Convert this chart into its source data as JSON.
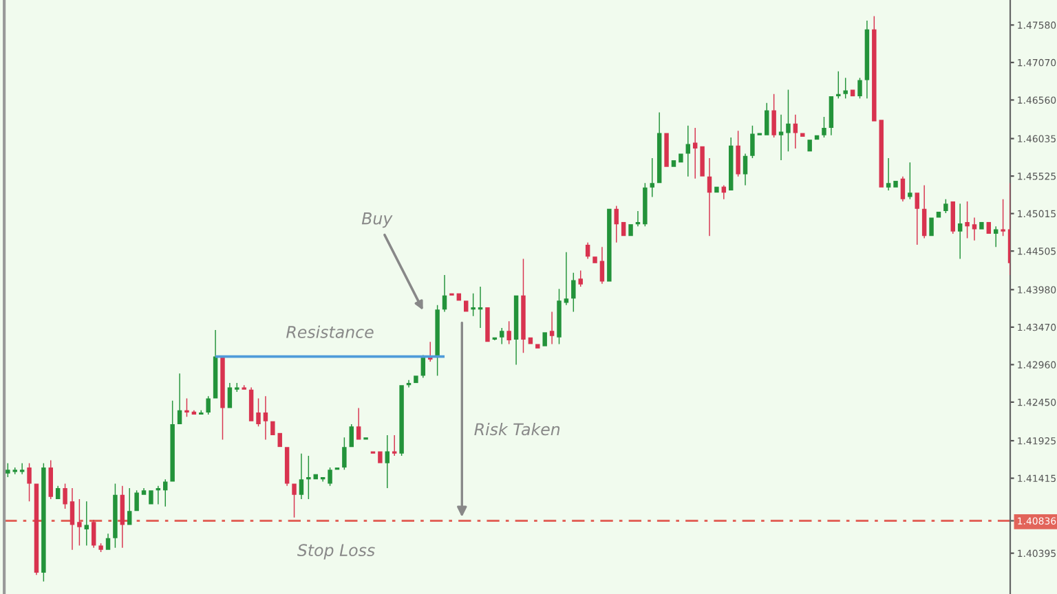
{
  "chart_data": {
    "type": "candlestick",
    "categories": [
      null,
      null,
      null,
      null,
      null,
      null,
      null,
      null,
      null,
      null,
      null,
      null,
      null,
      null,
      null,
      null,
      null,
      null,
      null,
      null,
      null,
      null,
      null,
      null,
      null,
      null,
      null,
      null,
      null,
      null,
      null,
      null,
      null,
      null,
      null,
      null,
      null,
      null,
      null,
      null,
      null,
      null,
      null,
      null,
      null,
      null,
      null,
      null,
      null,
      null,
      null,
      null,
      null,
      null,
      null,
      null,
      null,
      null,
      null,
      null,
      null,
      null,
      null,
      null,
      null,
      null,
      null,
      null,
      null,
      null,
      null,
      null,
      null,
      null,
      null,
      null,
      null,
      null,
      null,
      null,
      null,
      null,
      null,
      null,
      null,
      null,
      null,
      null,
      null,
      null,
      null,
      null,
      null,
      null,
      null,
      null,
      null,
      null,
      null,
      null,
      null,
      null,
      null,
      null,
      null,
      null,
      null,
      null,
      null,
      null,
      null,
      null,
      null,
      null,
      null,
      null,
      null,
      null,
      null,
      null,
      null,
      null,
      null,
      null,
      null,
      null,
      null,
      null,
      null,
      null,
      null,
      null,
      null,
      null,
      null,
      null,
      null,
      null,
      null,
      null,
      null
    ],
    "ylim": [
      1.3984,
      1.4792
    ],
    "yticks": [
      {
        "value": 1.4758,
        "label": "1.47580"
      },
      {
        "value": 1.4707,
        "label": "1.47070"
      },
      {
        "value": 1.4656,
        "label": "1.46560"
      },
      {
        "value": 1.46035,
        "label": "1.46035"
      },
      {
        "value": 1.45525,
        "label": "1.45525"
      },
      {
        "value": 1.45015,
        "label": "1.45015"
      },
      {
        "value": 1.44505,
        "label": "1.44505"
      },
      {
        "value": 1.4398,
        "label": "1.43980"
      },
      {
        "value": 1.4347,
        "label": "1.43470"
      },
      {
        "value": 1.4296,
        "label": "1.42960"
      },
      {
        "value": 1.4245,
        "label": "1.42450"
      },
      {
        "value": 1.41925,
        "label": "1.41925"
      },
      {
        "value": 1.41415,
        "label": "1.41415"
      },
      {
        "value": 1.40836,
        "label": "1.40836"
      },
      {
        "value": 1.40395,
        "label": "1.40395"
      }
    ],
    "tick_labels": "y",
    "colors": [
      "#23933a",
      "#23933a",
      "#23933a",
      "#d8334f",
      "#d8334f",
      "#23933a",
      "#d8334f",
      "#23933a",
      "#d8334f",
      "#d8334f",
      "#d8334f",
      "#23933a",
      "#d8334f",
      "#d8334f",
      "#23933a",
      "#23933a",
      "#d8334f",
      "#23933a",
      "#23933a",
      "#23933a",
      "#23933a",
      "#23933a",
      "#23933a",
      "#23933a",
      "#23933a",
      "#d8334f",
      "#d8334f",
      "#23933a",
      "#23933a",
      "#23933a",
      "#d8334f",
      "#23933a",
      "#23933a",
      "#d8334f",
      "#d8334f",
      "#d8334f",
      "#d8334f",
      "#d8334f",
      "#d8334f",
      "#d8334f",
      "#d8334f",
      "#23933a",
      "#23933a",
      "#23933a",
      "#23933a",
      "#23933a",
      "#23933a",
      "#23933a",
      "#23933a",
      "#d8334f",
      "#23933a",
      "#d8334f",
      "#d8334f",
      "#23933a",
      "#d8334f",
      "#23933a",
      "#23933a",
      "#23933a",
      "#23933a",
      "#d8334f",
      "#23933a",
      "#23933a",
      "#d8334f",
      "#d8334f",
      "#d8334f",
      "#23933a",
      "#23933a",
      "#d8334f",
      "#23933a",
      "#23933a",
      "#d8334f",
      "#23933a",
      "#d8334f",
      "#d8334f",
      "#d8334f",
      "#23933a",
      "#d8334f",
      "#23933a",
      "#23933a",
      "#23933a",
      "#d8334f",
      "#d8334f",
      "#d8334f",
      "#d8334f",
      "#23933a",
      "#d8334f",
      "#d8334f",
      "#23933a",
      "#23933a",
      "#23933a",
      "#23933a",
      "#23933a",
      "#d8334f",
      "#23933a",
      "#23933a",
      "#23933a",
      "#d8334f",
      "#d8334f",
      "#d8334f",
      "#23933a",
      "#d8334f",
      "#23933a",
      "#d8334f",
      "#23933a",
      "#23933a",
      "#23933a",
      "#23933a",
      "#d8334f",
      "#23933a",
      "#23933a",
      "#d8334f",
      "#d8334f",
      "#23933a",
      "#23933a",
      "#23933a",
      "#23933a",
      "#23933a",
      "#23933a",
      "#d8334f",
      "#23933a",
      "#23933a",
      "#d8334f",
      "#d8334f",
      "#23933a",
      "#23933a",
      "#d8334f",
      "#23933a",
      "#d8334f",
      "#d8334f",
      "#23933a",
      "#23933a",
      "#23933a",
      "#d8334f",
      "#23933a",
      "#d8334f",
      "#d8334f",
      "#23933a",
      "#d8334f",
      "#23933a",
      "#d8334f",
      "#d8334f"
    ],
    "ohlc": [
      [
        1.4148,
        1.4162,
        1.4143,
        1.4153
      ],
      [
        1.415,
        1.4156,
        1.4147,
        1.4153
      ],
      [
        1.415,
        1.4162,
        1.4147,
        1.4153
      ],
      [
        1.4156,
        1.4162,
        1.411,
        1.4134
      ],
      [
        1.4134,
        1.4134,
        1.401,
        1.4013
      ],
      [
        1.4013,
        1.4162,
        1.4001,
        1.4156
      ],
      [
        1.4156,
        1.4166,
        1.4113,
        1.4116
      ],
      [
        1.4113,
        1.4131,
        1.4113,
        1.4128
      ],
      [
        1.4128,
        1.4134,
        1.41,
        1.4106
      ],
      [
        1.411,
        1.4128,
        1.4044,
        1.4078
      ],
      [
        1.4082,
        1.4113,
        1.405,
        1.4075
      ],
      [
        1.4072,
        1.411,
        1.405,
        1.4078
      ],
      [
        1.4082,
        1.4085,
        1.4047,
        1.405
      ],
      [
        1.405,
        1.4053,
        1.4041,
        1.4044
      ],
      [
        1.4044,
        1.4066,
        1.4044,
        1.406
      ],
      [
        1.406,
        1.4134,
        1.4047,
        1.4119
      ],
      [
        1.4119,
        1.4131,
        1.4047,
        1.4078
      ],
      [
        1.4078,
        1.4128,
        1.4078,
        1.4097
      ],
      [
        1.4097,
        1.4125,
        1.4097,
        1.4122
      ],
      [
        1.4119,
        1.4128,
        1.4119,
        1.4125
      ],
      [
        1.4106,
        1.4125,
        1.4106,
        1.4125
      ],
      [
        1.4125,
        1.4131,
        1.4106,
        1.4128
      ],
      [
        1.4125,
        1.414,
        1.4103,
        1.4137
      ],
      [
        1.4137,
        1.4247,
        1.4137,
        1.4215
      ],
      [
        1.4215,
        1.4284,
        1.4215,
        1.4234
      ],
      [
        1.4234,
        1.425,
        1.4225,
        1.4231
      ],
      [
        1.4232,
        1.4234,
        1.4228,
        1.4228
      ],
      [
        1.4228,
        1.4234,
        1.4228,
        1.4231
      ],
      [
        1.4231,
        1.4253,
        1.4228,
        1.425
      ],
      [
        1.425,
        1.4343,
        1.425,
        1.4307
      ],
      [
        1.4307,
        1.4307,
        1.4194,
        1.4237
      ],
      [
        1.4237,
        1.4271,
        1.4237,
        1.4265
      ],
      [
        1.4262,
        1.4271,
        1.4259,
        1.4265
      ],
      [
        1.4265,
        1.4268,
        1.4262,
        1.4262
      ],
      [
        1.4262,
        1.4265,
        1.4219,
        1.4219
      ],
      [
        1.4231,
        1.425,
        1.4212,
        1.4215
      ],
      [
        1.4231,
        1.4253,
        1.4194,
        1.4219
      ],
      [
        1.4219,
        1.4219,
        1.42,
        1.42
      ],
      [
        1.4203,
        1.4203,
        1.4184,
        1.4184
      ],
      [
        1.4184,
        1.4184,
        1.4131,
        1.4134
      ],
      [
        1.4134,
        1.4134,
        1.4088,
        1.4119
      ],
      [
        1.4119,
        1.4175,
        1.4113,
        1.414
      ],
      [
        1.414,
        1.4172,
        1.4113,
        1.4143
      ],
      [
        1.414,
        1.4147,
        1.414,
        1.4147
      ],
      [
        1.414,
        1.4143,
        1.4137,
        1.4143
      ],
      [
        1.4134,
        1.4156,
        1.4131,
        1.4153
      ],
      [
        1.4153,
        1.4156,
        1.4153,
        1.4156
      ],
      [
        1.4156,
        1.4197,
        1.4153,
        1.4184
      ],
      [
        1.4184,
        1.4215,
        1.4184,
        1.4212
      ],
      [
        1.4212,
        1.4237,
        1.4194,
        1.4194
      ],
      [
        1.4194,
        1.4197,
        1.4194,
        1.4197
      ],
      [
        1.4178,
        1.4178,
        1.4175,
        1.4175
      ],
      [
        1.4178,
        1.4178,
        1.4162,
        1.4162
      ],
      [
        1.4162,
        1.42,
        1.4128,
        1.4178
      ],
      [
        1.4178,
        1.42,
        1.4172,
        1.4175
      ],
      [
        1.4175,
        1.4268,
        1.4172,
        1.4268
      ],
      [
        1.4268,
        1.4275,
        1.4265,
        1.4271
      ],
      [
        1.4271,
        1.4281,
        1.4271,
        1.4281
      ],
      [
        1.4281,
        1.4309,
        1.4278,
        1.4306
      ],
      [
        1.4307,
        1.4327,
        1.43,
        1.4303
      ],
      [
        1.4306,
        1.4377,
        1.4281,
        1.4371
      ],
      [
        1.4371,
        1.4418,
        1.4368,
        1.439
      ],
      [
        1.4393,
        1.4393,
        1.439,
        1.439
      ],
      [
        1.4393,
        1.4393,
        1.4383,
        1.4383
      ],
      [
        1.4383,
        1.4383,
        1.4368,
        1.4368
      ],
      [
        1.4371,
        1.4393,
        1.4362,
        1.4374
      ],
      [
        1.4371,
        1.4402,
        1.4346,
        1.4374
      ],
      [
        1.4374,
        1.4374,
        1.4327,
        1.4327
      ],
      [
        1.433,
        1.4333,
        1.4329,
        1.4333
      ],
      [
        1.4333,
        1.4346,
        1.4324,
        1.4342
      ],
      [
        1.4342,
        1.4355,
        1.4324,
        1.4329
      ],
      [
        1.433,
        1.439,
        1.4296,
        1.439
      ],
      [
        1.439,
        1.444,
        1.4312,
        1.433
      ],
      [
        1.4333,
        1.4333,
        1.4324,
        1.4324
      ],
      [
        1.4324,
        1.4324,
        1.4318,
        1.4318
      ],
      [
        1.4321,
        1.434,
        1.4321,
        1.434
      ],
      [
        1.4342,
        1.4368,
        1.4324,
        1.4335
      ],
      [
        1.4333,
        1.4399,
        1.4324,
        1.4383
      ],
      [
        1.438,
        1.4449,
        1.4377,
        1.4386
      ],
      [
        1.4386,
        1.4421,
        1.4368,
        1.4411
      ],
      [
        1.4413,
        1.4424,
        1.4402,
        1.4405
      ],
      [
        1.4459,
        1.4462,
        1.444,
        1.4443
      ],
      [
        1.4443,
        1.4443,
        1.4434,
        1.4434
      ],
      [
        1.4437,
        1.4456,
        1.4406,
        1.4409
      ],
      [
        1.4409,
        1.4508,
        1.4409,
        1.4508
      ],
      [
        1.4508,
        1.4512,
        1.4462,
        1.4487
      ],
      [
        1.449,
        1.449,
        1.4471,
        1.4471
      ],
      [
        1.4471,
        1.4487,
        1.4471,
        1.4487
      ],
      [
        1.4487,
        1.4505,
        1.4484,
        1.449
      ],
      [
        1.4487,
        1.4543,
        1.4484,
        1.4537
      ],
      [
        1.4537,
        1.4577,
        1.4524,
        1.4543
      ],
      [
        1.4543,
        1.4639,
        1.4543,
        1.4611
      ],
      [
        1.4611,
        1.4611,
        1.4565,
        1.4565
      ],
      [
        1.4565,
        1.4574,
        1.4565,
        1.4574
      ],
      [
        1.4571,
        1.4583,
        1.4571,
        1.4583
      ],
      [
        1.4583,
        1.4621,
        1.4552,
        1.4596
      ],
      [
        1.4598,
        1.4618,
        1.4549,
        1.459
      ],
      [
        1.4593,
        1.4593,
        1.4552,
        1.4552
      ],
      [
        1.4552,
        1.4577,
        1.4471,
        1.453
      ],
      [
        1.453,
        1.4538,
        1.453,
        1.4538
      ],
      [
        1.4538,
        1.454,
        1.4521,
        1.453
      ],
      [
        1.4533,
        1.4605,
        1.4533,
        1.4594
      ],
      [
        1.4594,
        1.4614,
        1.4552,
        1.4555
      ],
      [
        1.4555,
        1.4583,
        1.454,
        1.458
      ],
      [
        1.458,
        1.4621,
        1.4577,
        1.461
      ],
      [
        1.4608,
        1.4611,
        1.4608,
        1.4611
      ],
      [
        1.4608,
        1.4652,
        1.4608,
        1.4642
      ],
      [
        1.4642,
        1.4664,
        1.4605,
        1.4608
      ],
      [
        1.4608,
        1.4636,
        1.4574,
        1.4613
      ],
      [
        1.4611,
        1.467,
        1.4586,
        1.4624
      ],
      [
        1.4624,
        1.4636,
        1.459,
        1.4611
      ],
      [
        1.4611,
        1.4611,
        1.4606,
        1.4606
      ],
      [
        1.4586,
        1.4602,
        1.4586,
        1.4602
      ],
      [
        1.4602,
        1.4608,
        1.4602,
        1.4608
      ],
      [
        1.4608,
        1.4633,
        1.4605,
        1.4618
      ],
      [
        1.4618,
        1.4661,
        1.4608,
        1.4661
      ],
      [
        1.4661,
        1.4695,
        1.4658,
        1.4664
      ],
      [
        1.4664,
        1.4686,
        1.4658,
        1.4669
      ],
      [
        1.467,
        1.467,
        1.4661,
        1.4661
      ],
      [
        1.4661,
        1.4686,
        1.4658,
        1.4683
      ],
      [
        1.4683,
        1.4764,
        1.4658,
        1.4752
      ],
      [
        1.4752,
        1.477,
        1.4627,
        1.4627
      ],
      [
        1.4629,
        1.4629,
        1.4537,
        1.4537
      ],
      [
        1.4537,
        1.4577,
        1.4533,
        1.4543
      ],
      [
        1.4537,
        1.4546,
        1.4537,
        1.4546
      ],
      [
        1.4549,
        1.4552,
        1.4518,
        1.4521
      ],
      [
        1.4524,
        1.4571,
        1.4521,
        1.453
      ],
      [
        1.453,
        1.453,
        1.4459,
        1.4508
      ],
      [
        1.4508,
        1.454,
        1.4468,
        1.4471
      ],
      [
        1.4471,
        1.4496,
        1.4471,
        1.4496
      ],
      [
        1.4496,
        1.4504,
        1.4496,
        1.4504
      ],
      [
        1.4505,
        1.4521,
        1.4502,
        1.4515
      ],
      [
        1.4518,
        1.4518,
        1.4474,
        1.4477
      ],
      [
        1.4477,
        1.4515,
        1.444,
        1.4488
      ],
      [
        1.449,
        1.4518,
        1.4468,
        1.4484
      ],
      [
        1.4487,
        1.4496,
        1.4465,
        1.448
      ],
      [
        1.448,
        1.449,
        1.448,
        1.449
      ],
      [
        1.449,
        1.449,
        1.4474,
        1.4474
      ],
      [
        1.4474,
        1.4484,
        1.4456,
        1.448
      ],
      [
        1.448,
        1.4521,
        1.4471,
        1.4477
      ],
      [
        1.448,
        1.4543,
        1.4418,
        1.4434
      ]
    ],
    "series": [
      {
        "type": "line",
        "name": "Resistance",
        "color": "#4f9bd9",
        "values": [
          null,
          null,
          null,
          null,
          null,
          null,
          null,
          null,
          null,
          null,
          null,
          null,
          null,
          null,
          null,
          null,
          null,
          null,
          null,
          null,
          null,
          null,
          null,
          null,
          null,
          null,
          null,
          null,
          null,
          1.4307,
          1.4307,
          1.4307,
          1.4307,
          1.4307,
          1.4307,
          1.4307,
          1.4307,
          1.4307,
          1.4307,
          1.4307,
          1.4307,
          1.4307,
          1.4307,
          1.4307,
          1.4307,
          1.4307,
          1.4307,
          1.4307,
          1.4307,
          1.4307,
          1.4307,
          1.4307,
          1.4307,
          1.4307,
          1.4307,
          1.4307,
          1.4307,
          1.4307,
          1.4307,
          1.4307,
          1.4307,
          1.4307,
          null,
          null,
          null,
          null,
          null,
          null,
          null,
          null,
          null,
          null,
          null,
          null,
          null,
          null,
          null,
          null,
          null,
          null,
          null,
          null,
          null,
          null,
          null,
          null,
          null,
          null,
          null,
          null,
          null,
          null,
          null,
          null,
          null,
          null,
          null,
          null,
          null,
          null,
          null,
          null,
          null,
          null,
          null,
          null,
          null,
          null,
          null,
          null,
          null,
          null,
          null,
          null,
          null,
          null,
          null,
          null,
          null,
          null,
          null,
          null,
          null,
          null,
          null,
          null,
          null,
          null,
          null,
          null,
          null,
          null,
          null,
          null,
          null,
          null,
          null,
          null,
          null,
          null,
          null
        ]
      }
    ],
    "ref_lines": [
      {
        "axis": "y",
        "value": 1.40836,
        "label": "Stop Loss",
        "color": "#e2645a",
        "line_style": "dashed"
      }
    ],
    "annotations": [
      "Buy",
      "Risk Taken"
    ]
  }
}
